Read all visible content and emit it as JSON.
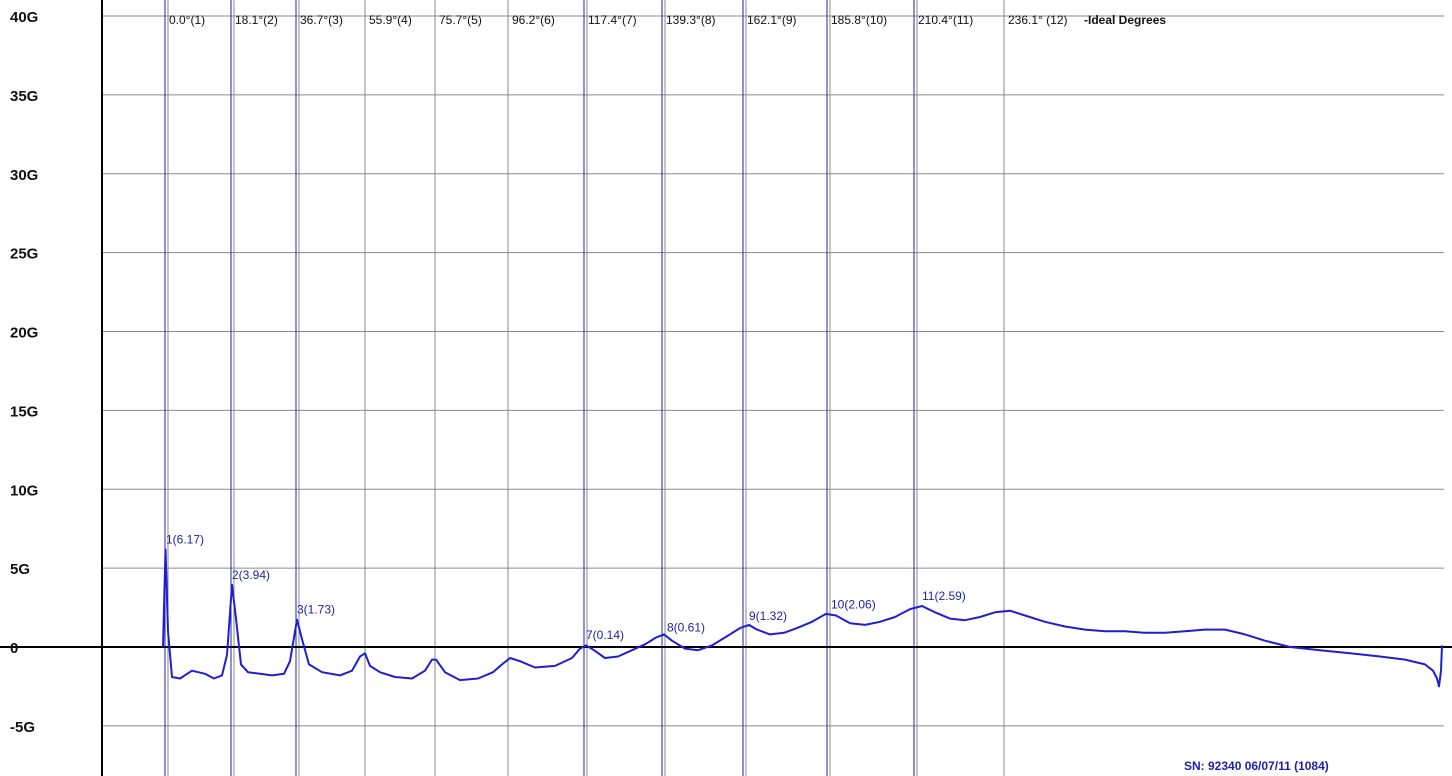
{
  "chart_data": {
    "type": "line",
    "ylim": [
      -7,
      41
    ],
    "xlim": [
      0,
      1452
    ],
    "grid": true,
    "y_ticks": [
      {
        "value": 40,
        "label": "40G"
      },
      {
        "value": 35,
        "label": "35G"
      },
      {
        "value": 30,
        "label": "30G"
      },
      {
        "value": 25,
        "label": "25G"
      },
      {
        "value": 20,
        "label": "20G"
      },
      {
        "value": 15,
        "label": "15G"
      },
      {
        "value": 10,
        "label": "10G"
      },
      {
        "value": 5,
        "label": "5G"
      },
      {
        "value": 0,
        "label": "0"
      },
      {
        "value": -5,
        "label": "-5G"
      }
    ],
    "ideal_markers": [
      {
        "label": "0.0°(1)",
        "x": 165,
        "highlight": true
      },
      {
        "label": "18.1°(2)",
        "x": 231,
        "highlight": true
      },
      {
        "label": "36.7°(3)",
        "x": 296,
        "highlight": true
      },
      {
        "label": "55.9°(4)",
        "x": 365,
        "highlight": false
      },
      {
        "label": "75.7°(5)",
        "x": 435,
        "highlight": false
      },
      {
        "label": "96.2°(6)",
        "x": 508,
        "highlight": false
      },
      {
        "label": "117.4°(7)",
        "x": 584,
        "highlight": true
      },
      {
        "label": "139.3°(8)",
        "x": 662,
        "highlight": true
      },
      {
        "label": "162.1°(9)",
        "x": 743,
        "highlight": true
      },
      {
        "label": "185.8°(10)",
        "x": 827,
        "highlight": true
      },
      {
        "label": "210.4°(11)",
        "x": 914,
        "highlight": true
      },
      {
        "label": "236.1° (12)",
        "x": 1004,
        "highlight": false
      }
    ],
    "ideal_suffix": "-Ideal Degrees",
    "peaks": [
      {
        "label": "1(6.17)",
        "x": 166,
        "y": 6.17
      },
      {
        "label": "2(3.94)",
        "x": 232,
        "y": 3.94
      },
      {
        "label": "3(1.73)",
        "x": 297,
        "y": 1.73
      },
      {
        "label": "7(0.14)",
        "x": 586,
        "y": 0.14
      },
      {
        "label": "8(0.61)",
        "x": 667,
        "y": 0.61
      },
      {
        "label": "9(1.32)",
        "x": 749,
        "y": 1.32
      },
      {
        "label": "10(2.06)",
        "x": 831,
        "y": 2.06
      },
      {
        "label": "11(2.59)",
        "x": 922,
        "y": 2.59
      }
    ],
    "series": [
      {
        "color": "#1f1fd0",
        "points": [
          [
            163,
            0
          ],
          [
            165.5,
            6.2
          ],
          [
            168,
            1.0
          ],
          [
            172,
            -1.9
          ],
          [
            180,
            -2.0
          ],
          [
            192,
            -1.5
          ],
          [
            205,
            -1.7
          ],
          [
            214,
            -2.0
          ],
          [
            222,
            -1.8
          ],
          [
            227,
            -0.5
          ],
          [
            232,
            3.94
          ],
          [
            236,
            1.8
          ],
          [
            241,
            -1.1
          ],
          [
            248,
            -1.6
          ],
          [
            260,
            -1.7
          ],
          [
            272,
            -1.8
          ],
          [
            284,
            -1.7
          ],
          [
            290,
            -0.9
          ],
          [
            297,
            1.73
          ],
          [
            302,
            0.5
          ],
          [
            309,
            -1.1
          ],
          [
            322,
            -1.6
          ],
          [
            340,
            -1.8
          ],
          [
            352,
            -1.5
          ],
          [
            360,
            -0.6
          ],
          [
            365,
            -0.4
          ],
          [
            370,
            -1.2
          ],
          [
            380,
            -1.6
          ],
          [
            395,
            -1.9
          ],
          [
            412,
            -2.0
          ],
          [
            425,
            -1.5
          ],
          [
            432,
            -0.8
          ],
          [
            436,
            -0.8
          ],
          [
            445,
            -1.6
          ],
          [
            460,
            -2.1
          ],
          [
            478,
            -2.0
          ],
          [
            493,
            -1.6
          ],
          [
            502,
            -1.1
          ],
          [
            510,
            -0.7
          ],
          [
            520,
            -0.9
          ],
          [
            535,
            -1.3
          ],
          [
            555,
            -1.2
          ],
          [
            572,
            -0.7
          ],
          [
            580,
            -0.1
          ],
          [
            586,
            0.1
          ],
          [
            594,
            -0.2
          ],
          [
            605,
            -0.7
          ],
          [
            618,
            -0.6
          ],
          [
            632,
            -0.2
          ],
          [
            646,
            0.2
          ],
          [
            656,
            0.6
          ],
          [
            664,
            0.8
          ],
          [
            672,
            0.4
          ],
          [
            685,
            -0.1
          ],
          [
            698,
            -0.2
          ],
          [
            712,
            0.1
          ],
          [
            725,
            0.6
          ],
          [
            740,
            1.2
          ],
          [
            749,
            1.4
          ],
          [
            757,
            1.1
          ],
          [
            770,
            0.8
          ],
          [
            784,
            0.9
          ],
          [
            797,
            1.2
          ],
          [
            812,
            1.6
          ],
          [
            826,
            2.1
          ],
          [
            836,
            2.0
          ],
          [
            850,
            1.5
          ],
          [
            865,
            1.4
          ],
          [
            880,
            1.6
          ],
          [
            895,
            1.9
          ],
          [
            910,
            2.4
          ],
          [
            922,
            2.6
          ],
          [
            935,
            2.2
          ],
          [
            950,
            1.8
          ],
          [
            965,
            1.7
          ],
          [
            980,
            1.9
          ],
          [
            995,
            2.2
          ],
          [
            1010,
            2.3
          ],
          [
            1025,
            2.0
          ],
          [
            1045,
            1.6
          ],
          [
            1065,
            1.3
          ],
          [
            1085,
            1.1
          ],
          [
            1105,
            1.0
          ],
          [
            1125,
            1.0
          ],
          [
            1145,
            0.9
          ],
          [
            1165,
            0.9
          ],
          [
            1185,
            1.0
          ],
          [
            1205,
            1.1
          ],
          [
            1225,
            1.1
          ],
          [
            1245,
            0.8
          ],
          [
            1265,
            0.4
          ],
          [
            1290,
            0.0
          ],
          [
            1320,
            -0.2
          ],
          [
            1350,
            -0.4
          ],
          [
            1380,
            -0.6
          ],
          [
            1405,
            -0.8
          ],
          [
            1425,
            -1.1
          ],
          [
            1433,
            -1.5
          ],
          [
            1437,
            -2.0
          ],
          [
            1439,
            -2.5
          ],
          [
            1441,
            -1.5
          ],
          [
            1442,
            0.1
          ]
        ]
      }
    ]
  },
  "serial_text": "SN: 92340 06/07/11 (1084)",
  "colors": {
    "grid": "#8a8a8a",
    "marker": "#2222aa",
    "axis": "#000000",
    "trace": "#1f1fd0"
  }
}
